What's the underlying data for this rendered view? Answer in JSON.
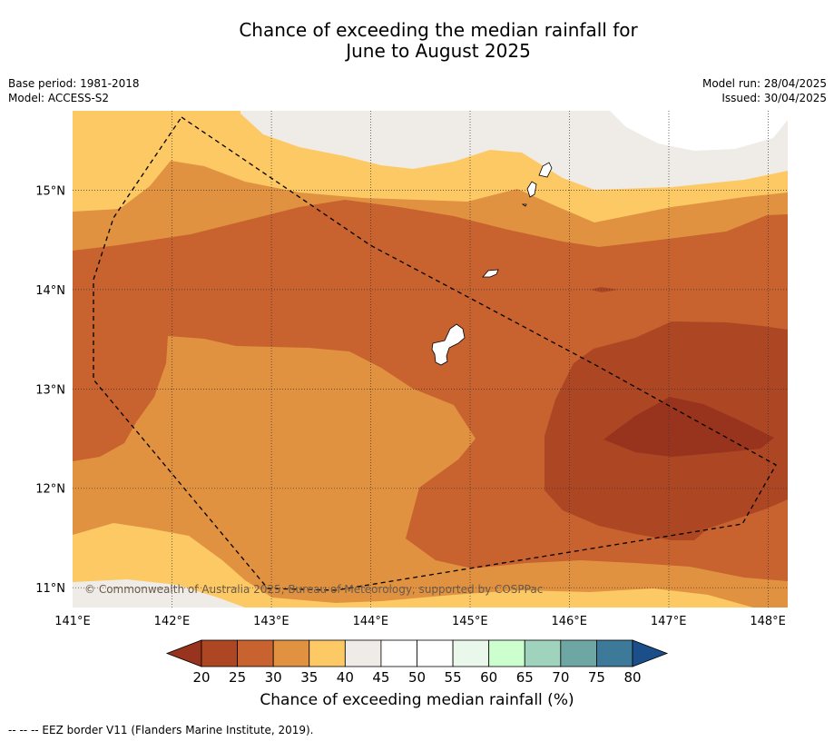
{
  "title_line1": "Chance of exceeding the median rainfall for",
  "title_line2": "June to August 2025",
  "meta_left": [
    "Base period: 1981-2018",
    "Model: ACCESS-S2"
  ],
  "meta_right": [
    "Model run: 28/04/2025",
    "Issued: 30/04/2025"
  ],
  "map": {
    "lon_range": [
      141.0,
      148.2
    ],
    "lat_range": [
      10.8,
      15.8
    ],
    "lon_ticks": [
      141,
      142,
      143,
      144,
      145,
      146,
      147,
      148
    ],
    "lon_tick_labels": [
      "141°E",
      "142°E",
      "143°E",
      "144°E",
      "145°E",
      "146°E",
      "147°E",
      "148°E"
    ],
    "lat_ticks": [
      15,
      14,
      13,
      12,
      11
    ],
    "lat_tick_labels": [
      "15°N",
      "14°N",
      "13°N",
      "12°N",
      "11°N"
    ],
    "grid": "dotted",
    "copyright": "© Commonwealth of Australia 2025, Bureau of Meteorology, supported by COSPPac",
    "eez_border_vertices": [
      [
        142.1,
        15.73
      ],
      [
        144.0,
        14.45
      ],
      [
        145.2,
        13.8
      ],
      [
        146.3,
        13.2
      ],
      [
        148.15,
        12.22
      ],
      [
        147.8,
        11.63
      ],
      [
        143.8,
        10.97
      ],
      [
        142.95,
        11.03
      ],
      [
        141.2,
        13.1
      ],
      [
        141.2,
        14.1
      ],
      [
        141.4,
        14.75
      ],
      [
        142.1,
        15.73
      ]
    ],
    "islands": [
      "Guam",
      "Rota",
      "Saipan",
      "Tinian"
    ]
  },
  "colorbar": {
    "title": "Chance of exceeding median rainfall (%)",
    "bounds": [
      20,
      25,
      30,
      35,
      40,
      45,
      50,
      55,
      60,
      65,
      70,
      75,
      80
    ],
    "colors": [
      "#ad4623",
      "#c8622f",
      "#e09241",
      "#fdc964",
      "#efebe6",
      "#ffffff",
      "#ffffff",
      "#eaf7eb",
      "#cdfece",
      "#a0d3bd",
      "#6ea6a3",
      "#3d7a99"
    ],
    "under_color": "#98341d",
    "over_color": "#1b4f8a"
  },
  "footnote": "-- -- -- EEZ border V11 (Flanders Marine Institute, 2019)."
}
